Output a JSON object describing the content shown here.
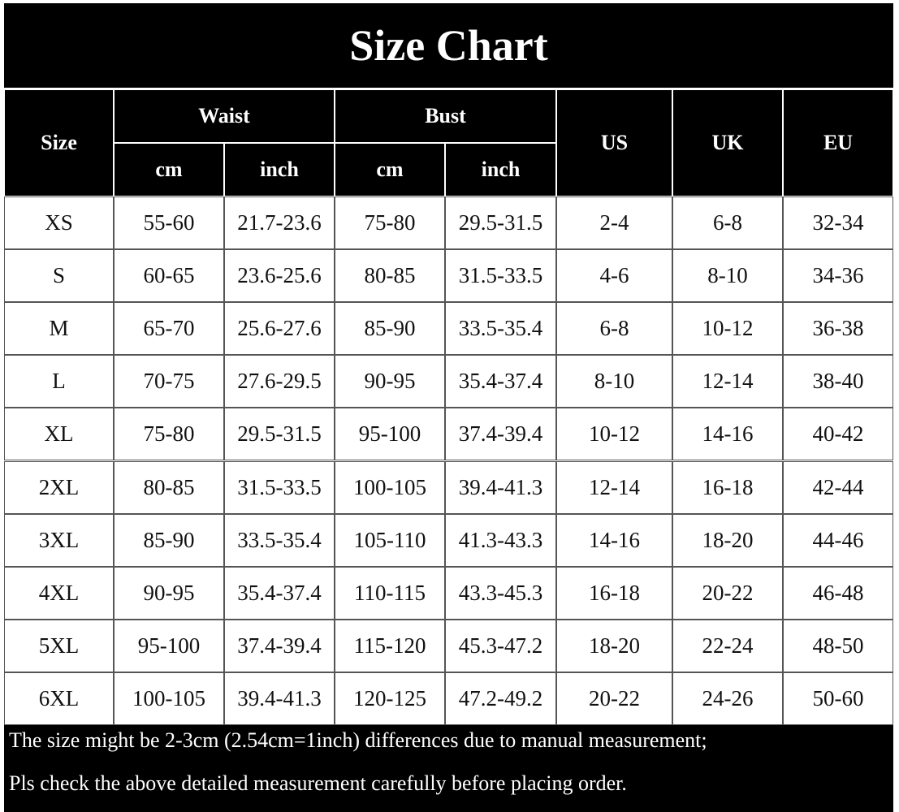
{
  "title": "Size Chart",
  "header": {
    "size": "Size",
    "groups": [
      {
        "label": "Waist",
        "units": [
          "cm",
          "inch"
        ]
      },
      {
        "label": "Bust",
        "units": [
          "cm",
          "inch"
        ]
      }
    ],
    "us": "US",
    "uk": "UK",
    "eu": "EU"
  },
  "table": {
    "rows": [
      [
        "XS",
        "55-60",
        "21.7-23.6",
        "75-80",
        "29.5-31.5",
        "2-4",
        "6-8",
        "32-34"
      ],
      [
        "S",
        "60-65",
        "23.6-25.6",
        "80-85",
        "31.5-33.5",
        "4-6",
        "8-10",
        "34-36"
      ],
      [
        "M",
        "65-70",
        "25.6-27.6",
        "85-90",
        "33.5-35.4",
        "6-8",
        "10-12",
        "36-38"
      ],
      [
        "L",
        "70-75",
        "27.6-29.5",
        "90-95",
        "35.4-37.4",
        "8-10",
        "12-14",
        "38-40"
      ],
      [
        "XL",
        "75-80",
        "29.5-31.5",
        "95-100",
        "37.4-39.4",
        "10-12",
        "14-16",
        "40-42"
      ],
      [
        "2XL",
        "80-85",
        "31.5-33.5",
        "100-105",
        "39.4-41.3",
        "12-14",
        "16-18",
        "42-44"
      ],
      [
        "3XL",
        "85-90",
        "33.5-35.4",
        "105-110",
        "41.3-43.3",
        "14-16",
        "18-20",
        "44-46"
      ],
      [
        "4XL",
        "90-95",
        "35.4-37.4",
        "110-115",
        "43.3-45.3",
        "16-18",
        "20-22",
        "46-48"
      ],
      [
        "5XL",
        "95-100",
        "37.4-39.4",
        "115-120",
        "45.3-47.2",
        "18-20",
        "22-24",
        "48-50"
      ],
      [
        "6XL",
        "100-105",
        "39.4-41.3",
        "120-125",
        "47.2-49.2",
        "20-22",
        "24-26",
        "50-60"
      ]
    ]
  },
  "notes": [
    "The size might be 2-3cm (2.54cm=1inch) differences due to manual measurement;",
    "Pls check the above detailed measurement carefully before placing order."
  ]
}
